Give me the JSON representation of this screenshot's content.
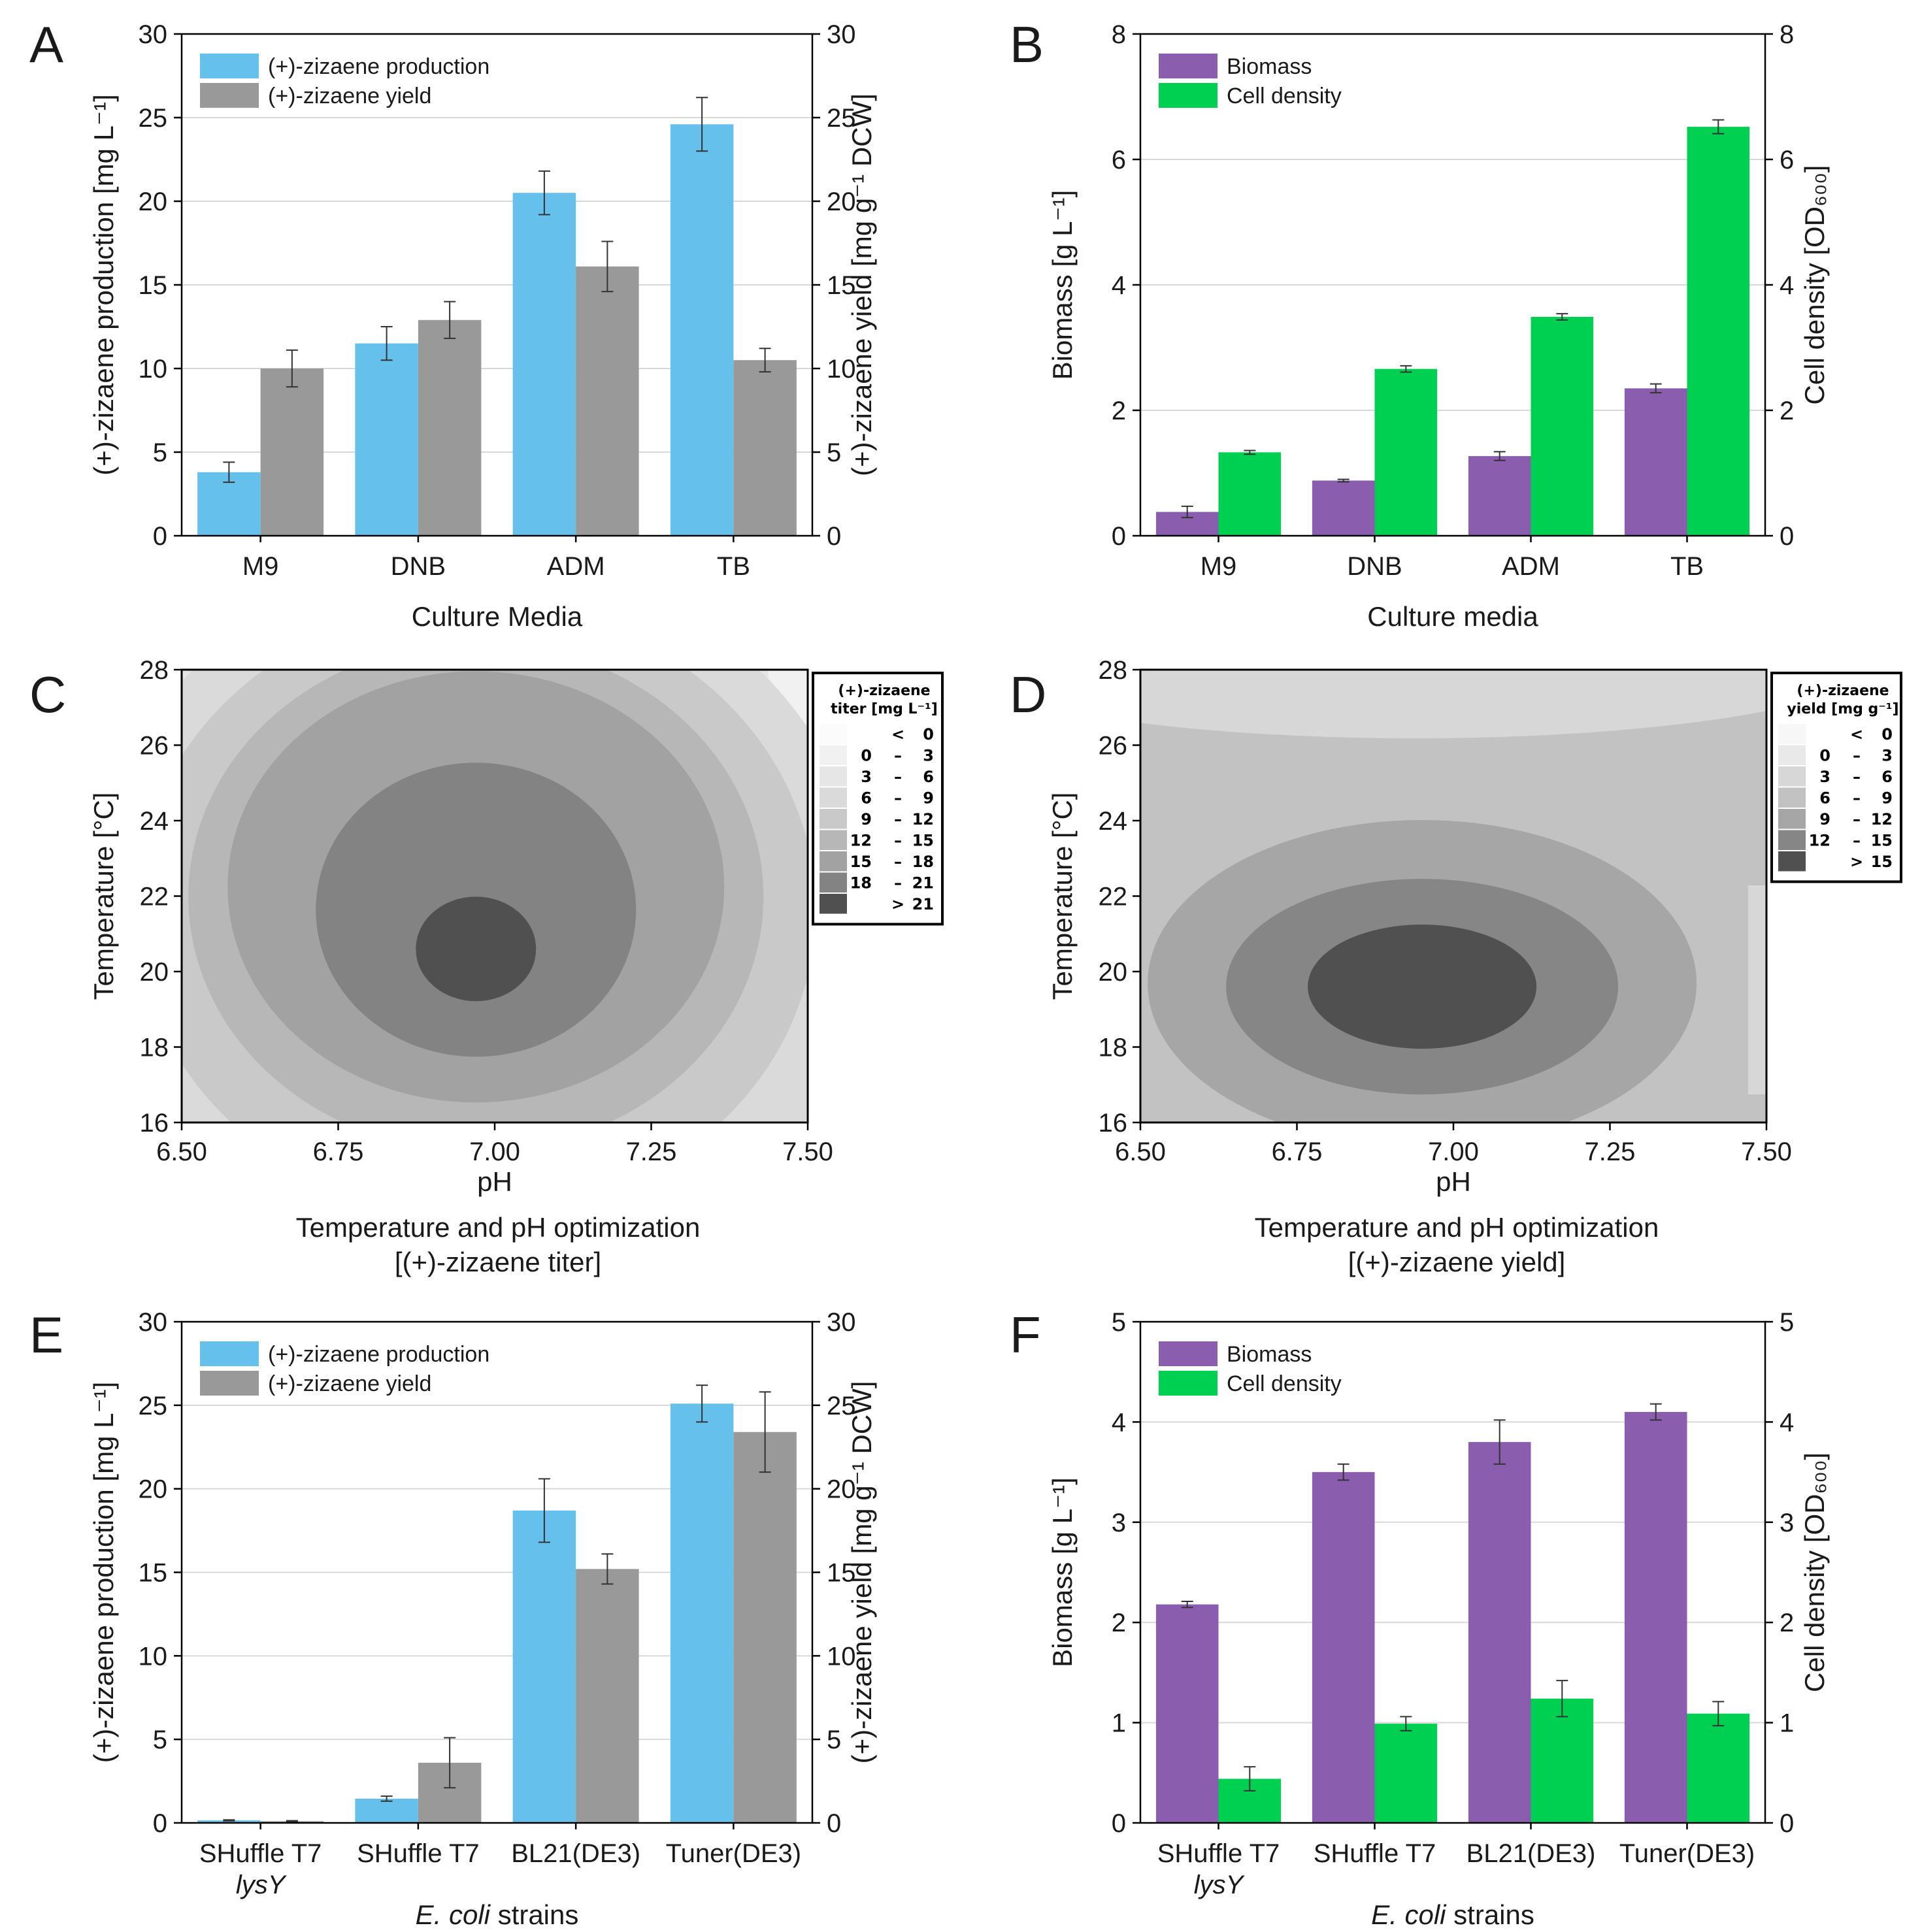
{
  "colors": {
    "production": "#65c1ec",
    "yield": "#999999",
    "biomass": "#8a5daf",
    "cell_density": "#00d052",
    "grid": "#d9d9d9"
  },
  "chart_data": [
    {
      "id": "A",
      "panel_label": "A",
      "type": "bar",
      "categories": [
        "M9",
        "DNB",
        "ADM",
        "TB"
      ],
      "series": [
        {
          "name": "(+)-zizaene  production",
          "axis": "left",
          "color_key": "production",
          "values": [
            3.8,
            11.5,
            20.5,
            24.6
          ],
          "errors": [
            0.6,
            1.0,
            1.3,
            1.6
          ]
        },
        {
          "name": "(+)-zizaene yield",
          "axis": "right",
          "color_key": "yield",
          "values": [
            10.0,
            12.9,
            16.1,
            10.5
          ],
          "errors": [
            1.1,
            1.1,
            1.5,
            0.7
          ]
        }
      ],
      "ylim": [
        0,
        30
      ],
      "y_ticks": [
        "0",
        "5",
        "10",
        "15",
        "20",
        "25",
        "30"
      ],
      "y2lim": [
        0,
        30
      ],
      "y2_ticks": [
        "0",
        "5",
        "10",
        "15",
        "20",
        "25",
        "30"
      ],
      "xlabel": "Culture Media",
      "ylabel": "(+)-zizaene  production [mg L⁻¹]",
      "y2label": "(+)-zizaene yield [mg g⁻¹ DCW]",
      "legend": "top-left"
    },
    {
      "id": "B",
      "panel_label": "B",
      "type": "bar",
      "categories": [
        "M9",
        "DNB",
        "ADM",
        "TB"
      ],
      "series": [
        {
          "name": "Biomass",
          "axis": "left",
          "color_key": "biomass",
          "values": [
            0.38,
            0.88,
            1.27,
            2.35
          ],
          "errors": [
            0.09,
            0.02,
            0.07,
            0.07
          ]
        },
        {
          "name": "Cell density",
          "axis": "right",
          "color_key": "cell_density",
          "values": [
            1.33,
            2.66,
            3.49,
            6.52
          ],
          "errors": [
            0.03,
            0.05,
            0.05,
            0.11
          ]
        }
      ],
      "ylim": [
        0,
        8
      ],
      "y_ticks": [
        "0",
        "2",
        "4",
        "6",
        "8"
      ],
      "y2lim": [
        0,
        8
      ],
      "y2_ticks": [
        "0",
        "2",
        "4",
        "6",
        "8"
      ],
      "xlabel": "Culture media",
      "ylabel": "Biomass [g L⁻¹]",
      "y2label": "Cell density [OD₆₀₀]",
      "legend": "top-left"
    },
    {
      "id": "C",
      "panel_label": "C",
      "type": "contour",
      "xlim": [
        6.5,
        7.5
      ],
      "x_ticks": [
        "6.50",
        "6.75",
        "7.00",
        "7.25",
        "7.50"
      ],
      "ylim": [
        16,
        28
      ],
      "y_ticks": [
        "16",
        "18",
        "20",
        "22",
        "24",
        "26",
        "28"
      ],
      "xlabel": "pH",
      "ylabel": "Temperature [°C]",
      "title": "Temperature and pH optimization",
      "subtitle": "[(+)-zizaene titer]",
      "peak": {
        "pH": 6.97,
        "temperature": 20.6,
        "value": "> 21"
      },
      "legend_title_1": "(+)-zizaene",
      "legend_title_2": "titer [mg L⁻¹]",
      "legend_entries": [
        {
          "lo": "",
          "sep": "<",
          "hi": "0",
          "color": "#fbfbfb"
        },
        {
          "lo": "0",
          "sep": "–",
          "hi": "3",
          "color": "#f1f1f1"
        },
        {
          "lo": "3",
          "sep": "–",
          "hi": "6",
          "color": "#e6e6e6"
        },
        {
          "lo": "6",
          "sep": "–",
          "hi": "9",
          "color": "#dadada"
        },
        {
          "lo": "9",
          "sep": "–",
          "hi": "12",
          "color": "#c9c9c9"
        },
        {
          "lo": "12",
          "sep": "–",
          "hi": "15",
          "color": "#b7b7b7"
        },
        {
          "lo": "15",
          "sep": "–",
          "hi": "18",
          "color": "#a2a2a2"
        },
        {
          "lo": "18",
          "sep": "–",
          "hi": "21",
          "color": "#838383"
        },
        {
          "lo": "",
          "sep": ">",
          "hi": "21",
          "color": "#505050"
        }
      ]
    },
    {
      "id": "D",
      "panel_label": "D",
      "type": "contour",
      "xlim": [
        6.5,
        7.5
      ],
      "x_ticks": [
        "6.50",
        "6.75",
        "7.00",
        "7.25",
        "7.50"
      ],
      "ylim": [
        16,
        28
      ],
      "y_ticks": [
        "16",
        "18",
        "20",
        "22",
        "24",
        "26",
        "28"
      ],
      "xlabel": "pH",
      "ylabel": "Temperature [°C]",
      "title": "Temperature and pH optimization",
      "subtitle": "[(+)-zizaene yield]",
      "peak": {
        "pH": 6.95,
        "temperature": 19.6,
        "value": "> 15"
      },
      "legend_title_1": "(+)-zizaene",
      "legend_title_2": "yield [mg g⁻¹]",
      "legend_entries": [
        {
          "lo": "",
          "sep": "<",
          "hi": "0",
          "color": "#f7f7f7"
        },
        {
          "lo": "0",
          "sep": "–",
          "hi": "3",
          "color": "#e9e9e9"
        },
        {
          "lo": "3",
          "sep": "–",
          "hi": "6",
          "color": "#d7d7d7"
        },
        {
          "lo": "6",
          "sep": "–",
          "hi": "9",
          "color": "#c2c2c2"
        },
        {
          "lo": "9",
          "sep": "–",
          "hi": "12",
          "color": "#a6a6a6"
        },
        {
          "lo": "12",
          "sep": "–",
          "hi": "15",
          "color": "#868686"
        },
        {
          "lo": "",
          "sep": ">",
          "hi": "15",
          "color": "#505050"
        }
      ]
    },
    {
      "id": "E",
      "panel_label": "E",
      "type": "bar",
      "categories": [
        "SHuffle T7",
        "SHuffle T7",
        "BL21(DE3)",
        "Tuner(DE3)"
      ],
      "category_sublabels": [
        "lysY",
        "",
        "",
        ""
      ],
      "series": [
        {
          "name": "(+)-zizaene  production",
          "axis": "left",
          "color_key": "production",
          "values": [
            0.15,
            1.45,
            18.7,
            25.1
          ],
          "errors": [
            0.03,
            0.15,
            1.9,
            1.1
          ]
        },
        {
          "name": "(+)-zizaene yield",
          "axis": "right",
          "color_key": "yield",
          "values": [
            0.1,
            3.6,
            15.2,
            23.4
          ],
          "errors": [
            0.03,
            1.5,
            0.9,
            2.4
          ]
        }
      ],
      "ylim": [
        0,
        30
      ],
      "y_ticks": [
        "0",
        "5",
        "10",
        "15",
        "20",
        "25",
        "30"
      ],
      "y2lim": [
        0,
        30
      ],
      "y2_ticks": [
        "0",
        "5",
        "10",
        "15",
        "20",
        "25",
        "30"
      ],
      "xlabel_italic": "E. coli",
      "xlabel_rest": " strains",
      "ylabel": "(+)-zizaene  production [mg L⁻¹]",
      "y2label": "(+)-zizaene yield [mg g⁻¹ DCW]",
      "legend": "top-left"
    },
    {
      "id": "F",
      "panel_label": "F",
      "type": "bar",
      "categories": [
        "SHuffle T7",
        "SHuffle T7",
        "BL21(DE3)",
        "Tuner(DE3)"
      ],
      "category_sublabels": [
        "lysY",
        "",
        "",
        ""
      ],
      "series": [
        {
          "name": "Biomass",
          "axis": "left",
          "color_key": "biomass",
          "values": [
            2.18,
            3.5,
            3.8,
            4.1
          ],
          "errors": [
            0.03,
            0.08,
            0.22,
            0.08
          ]
        },
        {
          "name": "Cell density",
          "axis": "right",
          "color_key": "cell_density",
          "values": [
            0.44,
            0.99,
            1.24,
            1.09
          ],
          "errors": [
            0.12,
            0.07,
            0.18,
            0.12
          ]
        }
      ],
      "ylim": [
        0,
        5
      ],
      "y_ticks": [
        "0",
        "1",
        "2",
        "3",
        "4",
        "5"
      ],
      "y2lim": [
        0,
        5
      ],
      "y2_ticks": [
        "0",
        "1",
        "2",
        "3",
        "4",
        "5"
      ],
      "xlabel_italic": "E. coli",
      "xlabel_rest": " strains",
      "ylabel": "Biomass [g L⁻¹]",
      "y2label": "Cell density [OD₆₀₀]",
      "legend": "top-left"
    }
  ]
}
